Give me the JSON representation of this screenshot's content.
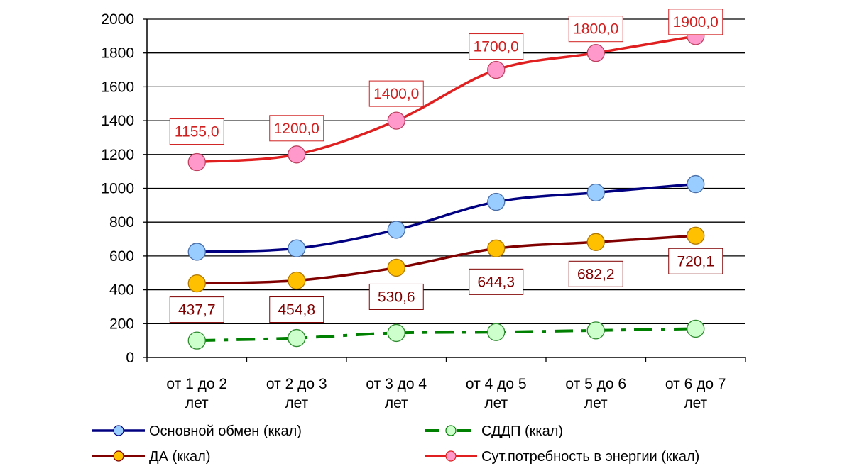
{
  "chart_data": {
    "type": "line",
    "categories": [
      [
        "от 1 до 2",
        "лет"
      ],
      [
        "от 2 до 3",
        "лет"
      ],
      [
        "от 3 до 4",
        "лет"
      ],
      [
        "от 4 до 5",
        "лет"
      ],
      [
        "от 5 до 6",
        "лет"
      ],
      [
        "от 6 до 7",
        "лет"
      ]
    ],
    "ylim": [
      0,
      2000
    ],
    "yticks": [
      "0",
      "200",
      "400",
      "600",
      "800",
      "1000",
      "1200",
      "1400",
      "1600",
      "1800",
      "2000"
    ],
    "grid": true,
    "legend_position": "bottom",
    "series": [
      {
        "name": "Основной обмен (ккал)",
        "values": [
          625,
          645,
          755,
          920,
          975,
          1025
        ],
        "color": "#000080",
        "marker_color": "#99ccff",
        "dashed": false
      },
      {
        "name": "СДДП (ккал)",
        "values": [
          100,
          115,
          145,
          150,
          160,
          170
        ],
        "color": "#008000",
        "marker_color": "#ccffcc",
        "dashed": true
      },
      {
        "name": "ДА (ккал)",
        "values": [
          437.7,
          454.8,
          530.6,
          644.3,
          682.2,
          720.1
        ],
        "color": "#800000",
        "marker_color": "#ffc000",
        "dashed": false,
        "labels": [
          "437,7",
          "454,8",
          "530,6",
          "644,3",
          "682,2",
          "720,1"
        ],
        "label_color": "#800000"
      },
      {
        "name": "Сут.потребность в энергии (ккал)",
        "values": [
          1155.0,
          1200.0,
          1400.0,
          1700.0,
          1800.0,
          1900.0
        ],
        "color": "#e02020",
        "marker_color": "#ff99cc",
        "dashed": false,
        "labels": [
          "1155,0",
          "1200,0",
          "1400,0",
          "1700,0",
          "1800,0",
          "1900,0"
        ],
        "label_color": "#d02020"
      }
    ]
  }
}
